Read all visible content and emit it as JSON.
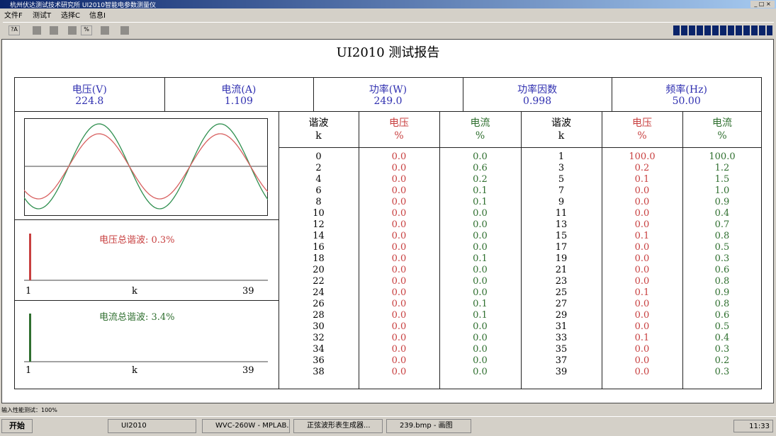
{
  "window": {
    "title": "杭州伏达测试技术研究所  UI2010智能电参数测量仪",
    "menu": [
      "文件F",
      "测试T",
      "选择C",
      "信息I"
    ],
    "toolbar": [
      "?A",
      "%"
    ]
  },
  "report": {
    "title": "UI2010 测试报告",
    "summary": [
      {
        "label": "电压(V)",
        "value": "224.8"
      },
      {
        "label": "电流(A)",
        "value": "1.109"
      },
      {
        "label": "功率(W)",
        "value": "249.0"
      },
      {
        "label": "功率因数",
        "value": "0.998"
      },
      {
        "label": "频率(Hz)",
        "value": "50.00"
      }
    ],
    "voltage_thd": "电压总谐波: 0.3%",
    "current_thd": "电流总谐波: 3.4%",
    "spectrum_axis": [
      "1",
      "k",
      "39"
    ],
    "table": {
      "header": [
        [
          "谐波",
          "k"
        ],
        [
          "电压",
          "%"
        ],
        [
          "电流",
          "%"
        ],
        [
          "谐波",
          "k"
        ],
        [
          "电压",
          "%"
        ],
        [
          "电流",
          "%"
        ]
      ],
      "rows": [
        [
          "0",
          "0.0",
          "0.0",
          "1",
          "100.0",
          "100.0"
        ],
        [
          "2",
          "0.0",
          "0.6",
          "3",
          "0.2",
          "1.2"
        ],
        [
          "4",
          "0.0",
          "0.2",
          "5",
          "0.1",
          "1.5"
        ],
        [
          "6",
          "0.0",
          "0.1",
          "7",
          "0.0",
          "1.0"
        ],
        [
          "8",
          "0.0",
          "0.1",
          "9",
          "0.0",
          "0.9"
        ],
        [
          "10",
          "0.0",
          "0.0",
          "11",
          "0.0",
          "0.4"
        ],
        [
          "12",
          "0.0",
          "0.0",
          "13",
          "0.0",
          "0.7"
        ],
        [
          "14",
          "0.0",
          "0.0",
          "15",
          "0.1",
          "0.8"
        ],
        [
          "16",
          "0.0",
          "0.0",
          "17",
          "0.0",
          "0.5"
        ],
        [
          "18",
          "0.0",
          "0.1",
          "19",
          "0.0",
          "0.3"
        ],
        [
          "20",
          "0.0",
          "0.0",
          "21",
          "0.0",
          "0.6"
        ],
        [
          "22",
          "0.0",
          "0.0",
          "23",
          "0.0",
          "0.8"
        ],
        [
          "24",
          "0.0",
          "0.0",
          "25",
          "0.1",
          "0.9"
        ],
        [
          "26",
          "0.0",
          "0.1",
          "27",
          "0.0",
          "0.8"
        ],
        [
          "28",
          "0.0",
          "0.1",
          "29",
          "0.0",
          "0.6"
        ],
        [
          "30",
          "0.0",
          "0.0",
          "31",
          "0.0",
          "0.5"
        ],
        [
          "32",
          "0.0",
          "0.0",
          "33",
          "0.1",
          "0.4"
        ],
        [
          "34",
          "0.0",
          "0.0",
          "35",
          "0.0",
          "0.3"
        ],
        [
          "36",
          "0.0",
          "0.0",
          "37",
          "0.0",
          "0.2"
        ],
        [
          "38",
          "0.0",
          "0.0",
          "39",
          "0.0",
          "0.3"
        ]
      ]
    }
  },
  "status": "输入性能测试：100%",
  "taskbar": {
    "start": "开始",
    "tasks": [
      "UI2010",
      "WVC-260W - MPLAB...",
      "正弦波形表生成器...",
      "239.bmp - 画图"
    ],
    "clock": "11:33"
  }
}
